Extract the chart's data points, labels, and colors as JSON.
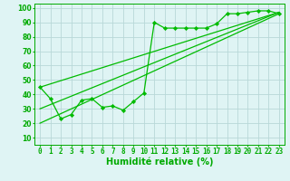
{
  "x": [
    0,
    1,
    2,
    3,
    4,
    5,
    6,
    7,
    8,
    9,
    10,
    11,
    12,
    13,
    14,
    15,
    16,
    17,
    18,
    19,
    20,
    21,
    22,
    23
  ],
  "scatter_y": [
    45,
    37,
    23,
    26,
    36,
    37,
    31,
    32,
    29,
    35,
    41,
    90,
    86,
    86,
    86,
    86,
    86,
    89,
    96,
    96,
    97,
    98,
    98,
    96
  ],
  "line1_x": [
    0,
    23
  ],
  "line1_y": [
    45,
    97
  ],
  "line2_x": [
    0,
    23
  ],
  "line2_y": [
    20,
    96
  ],
  "line3_x": [
    0,
    23
  ],
  "line3_y": [
    30,
    97
  ],
  "bg_color": "#dff4f4",
  "grid_color": "#b8d8d8",
  "line_color": "#00bb00",
  "scatter_color": "#00bb00",
  "axis_color": "#00aa00",
  "xlabel": "Humidité relative (%)",
  "xlabel_fontsize": 7,
  "ylabel_values": [
    10,
    20,
    30,
    40,
    50,
    60,
    70,
    80,
    90,
    100
  ],
  "xlim": [
    -0.5,
    23.5
  ],
  "ylim": [
    5,
    103
  ],
  "tick_fontsize": 5.5,
  "marker": "D",
  "marker_size": 2.2
}
